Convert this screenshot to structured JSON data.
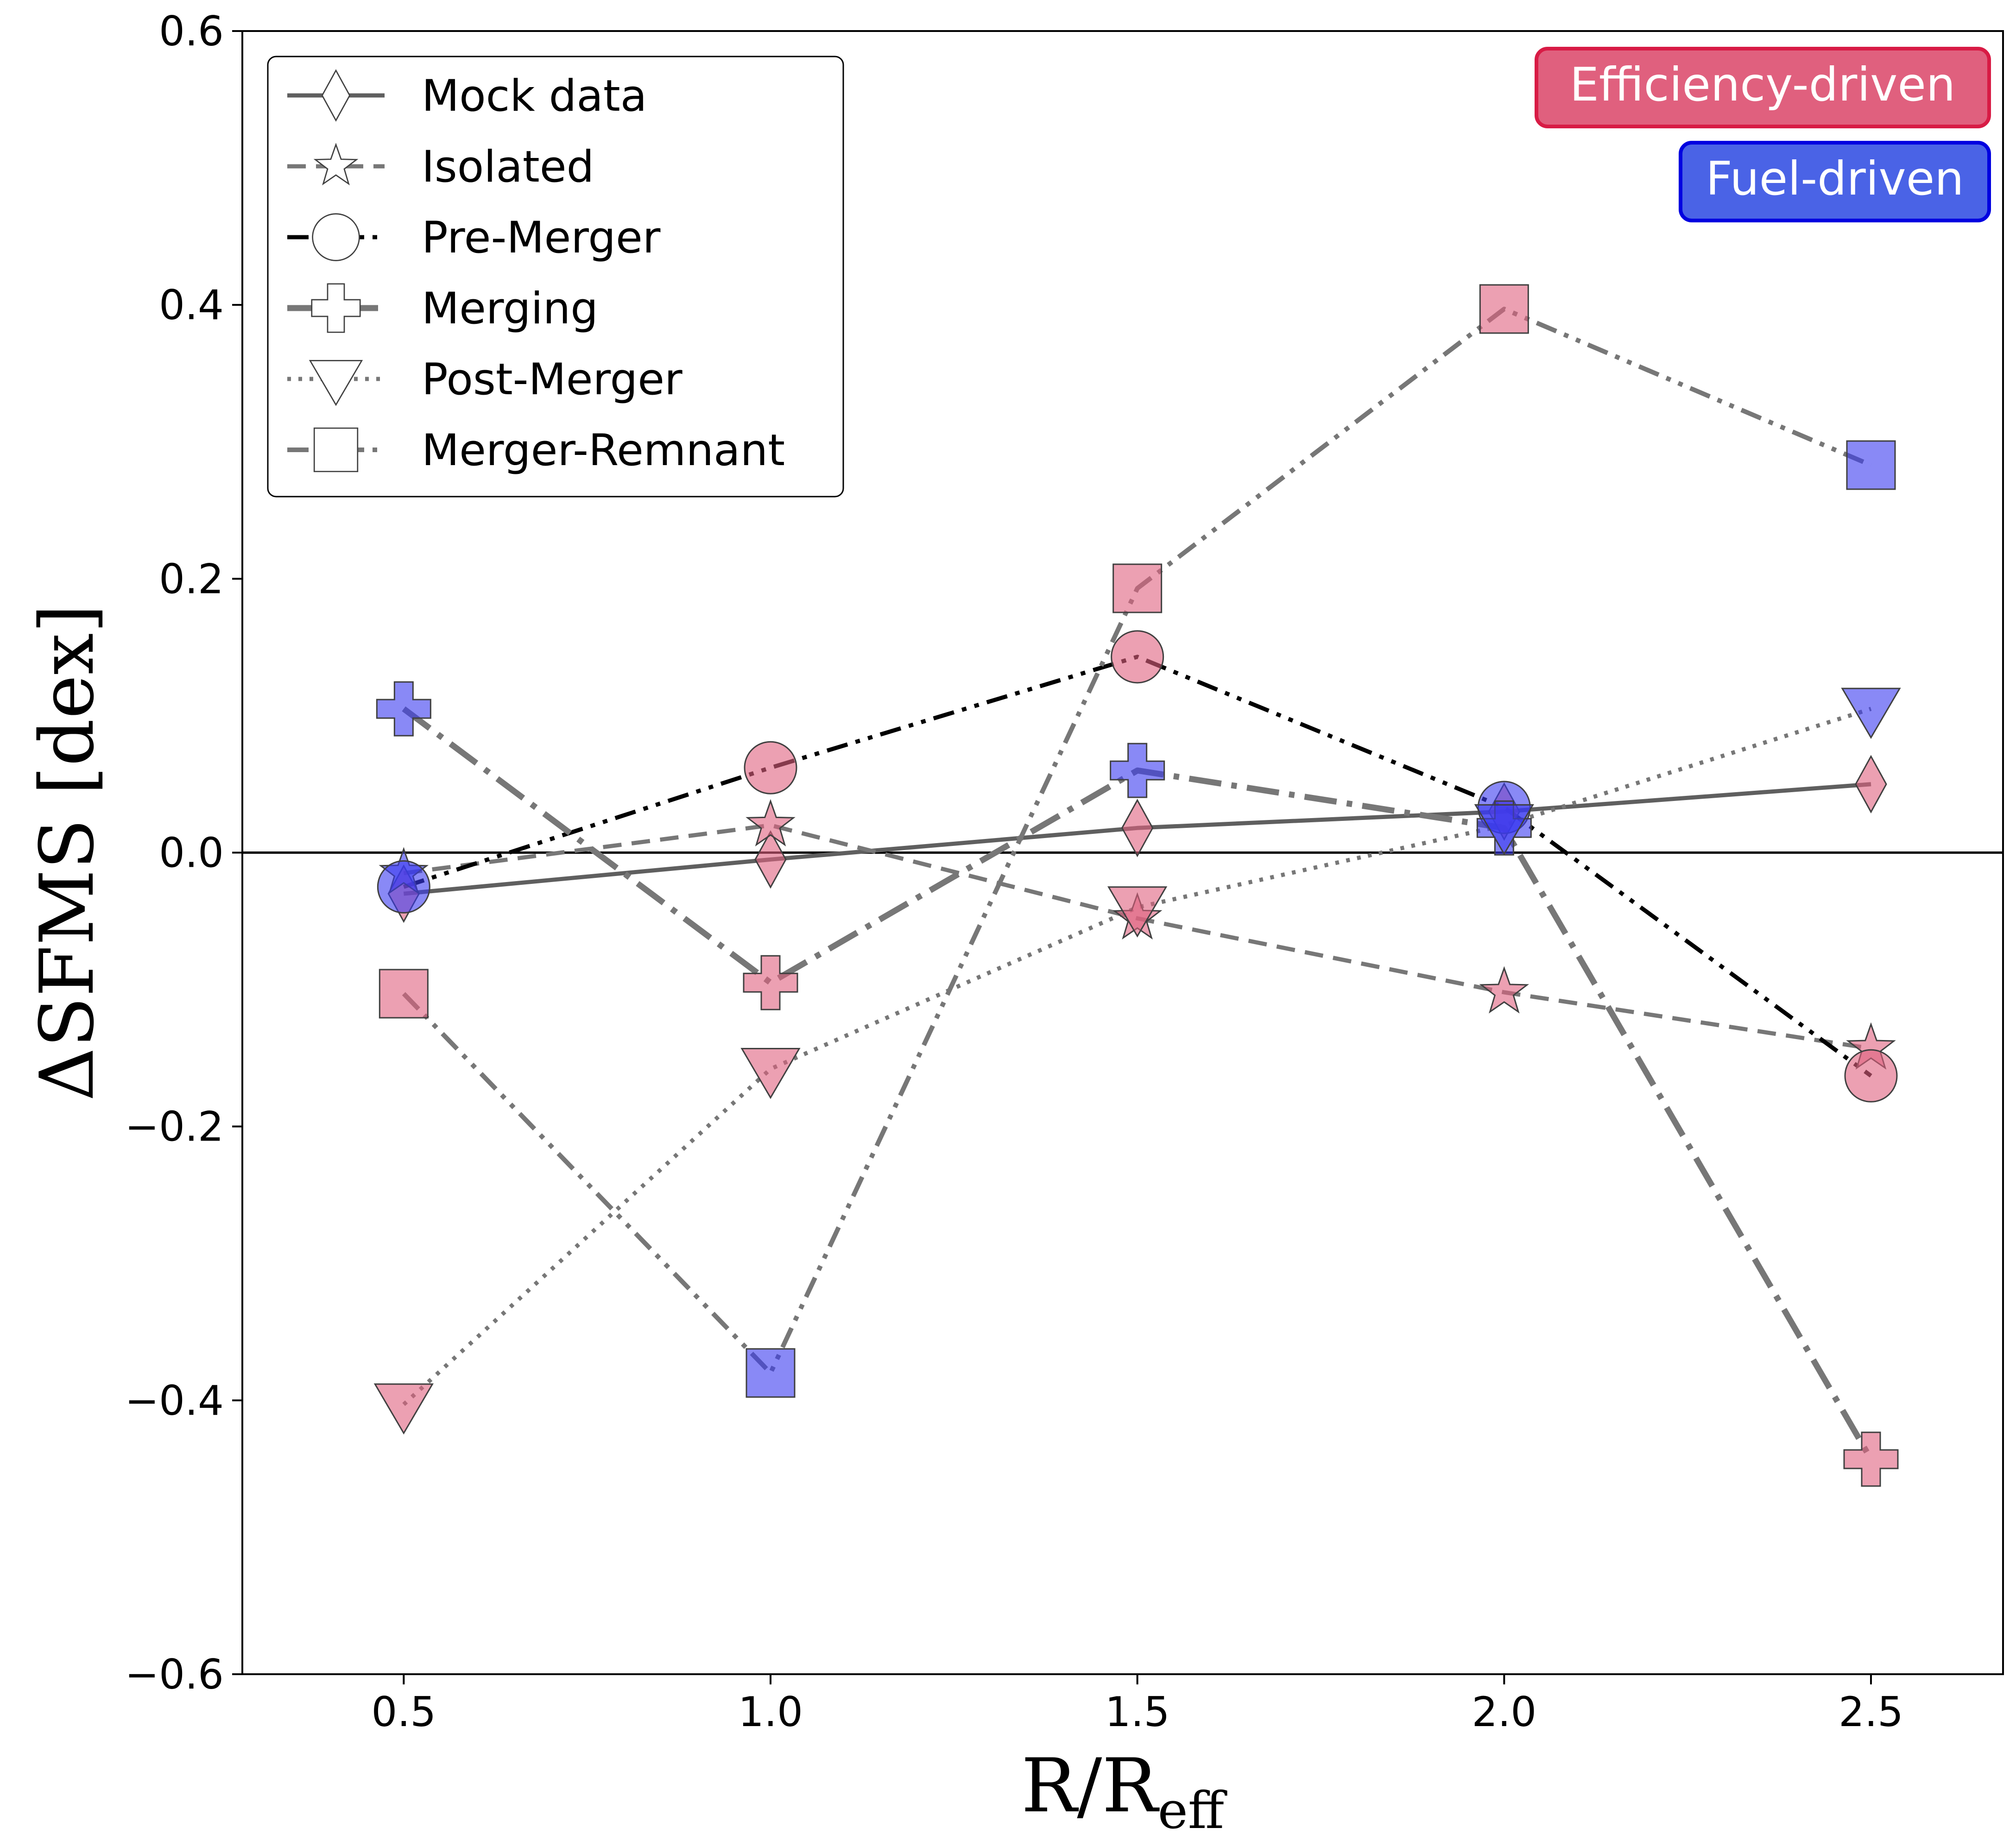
{
  "chart_data": {
    "type": "line",
    "title": "",
    "xlabel": "R/R",
    "xlabel_subscript": "eff",
    "ylabel": "ΔSFMS [dex]",
    "xlim": [
      0.28,
      2.68
    ],
    "ylim": [
      -0.6,
      0.6
    ],
    "x_ticks": [
      0.5,
      1.0,
      1.5,
      2.0,
      2.5
    ],
    "x_tick_labels": [
      "0.5",
      "1.0",
      "1.5",
      "2.0",
      "2.5"
    ],
    "y_ticks": [
      -0.6,
      -0.4,
      -0.2,
      0.0,
      0.2,
      0.4,
      0.6
    ],
    "y_tick_labels": [
      "−0.6",
      "−0.4",
      "−0.2",
      "0.0",
      "0.2",
      "0.4",
      "0.6"
    ],
    "grid": false,
    "reference_line_y": 0.0,
    "x": [
      0.5,
      1.0,
      1.5,
      2.0,
      2.5
    ],
    "colors": {
      "efficiency": "#e0607e",
      "fuel": "#3b3bf0",
      "efficiency_box_border": "#d81b45",
      "fuel_box_border": "#0000e0",
      "line_gray": "#707070",
      "line_black": "#000000"
    },
    "legend": {
      "placement": "top-left",
      "entries": [
        "Mock data",
        "Isolated",
        "Pre-Merger",
        "Merging",
        "Post-Merger",
        "Merger-Remnant"
      ]
    },
    "annotations": {
      "efficiency": "Efficiency-driven",
      "fuel": "Fuel-driven"
    },
    "series": [
      {
        "name": "Mock data",
        "marker": "diamond",
        "linestyle": "solid",
        "line_color": "#5f5f5f",
        "values": [
          -0.03,
          -0.005,
          0.018,
          0.03,
          0.05
        ],
        "marker_colors": [
          "efficiency",
          "efficiency",
          "efficiency",
          "efficiency",
          "efficiency"
        ]
      },
      {
        "name": "Isolated",
        "marker": "star",
        "linestyle": "dashed",
        "line_color": "#777777",
        "values": [
          -0.015,
          0.02,
          -0.048,
          -0.102,
          -0.143
        ],
        "marker_colors": [
          "fuel",
          "efficiency",
          "efficiency",
          "efficiency",
          "efficiency"
        ]
      },
      {
        "name": "Pre-Merger",
        "marker": "circle",
        "linestyle": "dashdotdot",
        "line_color": "#000000",
        "values": [
          -0.025,
          0.062,
          0.143,
          0.033,
          -0.163
        ],
        "marker_colors": [
          "fuel",
          "efficiency",
          "efficiency",
          "fuel",
          "efficiency"
        ]
      },
      {
        "name": "Merging",
        "marker": "plus",
        "linestyle": "longdashdot",
        "line_color": "#777777",
        "values": [
          0.105,
          -0.095,
          0.06,
          0.018,
          -0.443
        ],
        "marker_colors": [
          "fuel",
          "efficiency",
          "fuel",
          "fuel",
          "efficiency"
        ]
      },
      {
        "name": "Post-Merger",
        "marker": "triangle-down",
        "linestyle": "dotted",
        "line_color": "#777777",
        "values": [
          -0.403,
          -0.158,
          -0.04,
          0.02,
          0.105
        ],
        "marker_colors": [
          "efficiency",
          "efficiency",
          "efficiency",
          "fuel",
          "fuel"
        ]
      },
      {
        "name": "Merger-Remnant",
        "marker": "square",
        "linestyle": "dashdotdot",
        "line_color": "#777777",
        "values": [
          -0.103,
          -0.38,
          0.193,
          0.397,
          0.283
        ],
        "marker_colors": [
          "efficiency",
          "fuel",
          "efficiency",
          "efficiency",
          "fuel"
        ]
      }
    ]
  }
}
